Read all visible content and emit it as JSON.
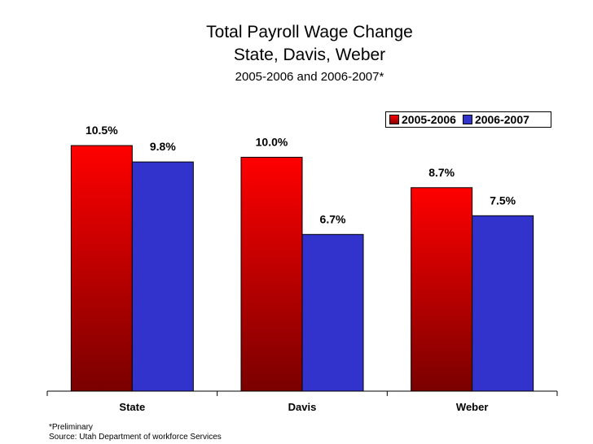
{
  "chart_data": {
    "type": "bar",
    "title": "Total Payroll Wage Change",
    "subtitle": "State, Davis, Weber",
    "subtitle2": "2005-2006 and 2006-2007*",
    "categories": [
      "State",
      "Davis",
      "Weber"
    ],
    "series": [
      {
        "name": "2005-2006",
        "values": [
          10.5,
          10.0,
          8.7
        ],
        "labels": [
          "10.5%",
          "10.0%",
          "8.7%"
        ],
        "color": "#ff0000"
      },
      {
        "name": "2006-2007",
        "values": [
          9.8,
          6.7,
          7.5
        ],
        "labels": [
          "9.8%",
          "6.7%",
          "7.5%"
        ],
        "color": "#3232cc"
      }
    ],
    "ylim": [
      0,
      10.5
    ],
    "legend": "top-right",
    "grid": false
  },
  "footnotes": {
    "preliminary": "*Preliminary",
    "source": "Source: Utah Department of workforce Services"
  }
}
